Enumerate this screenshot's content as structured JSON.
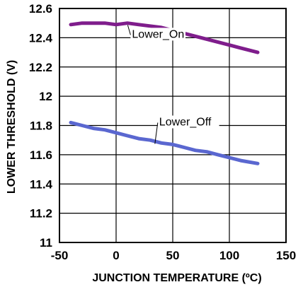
{
  "chart_data": {
    "type": "line",
    "xlabel": "JUNCTION TEMPERATURE (ºC)",
    "ylabel": "LOWER THRESHOLD (V)",
    "xlim": [
      -50,
      150
    ],
    "ylim": [
      11,
      12.6
    ],
    "x_ticks": [
      -50,
      0,
      50,
      100,
      150
    ],
    "x_tick_labels": [
      "-50",
      "0",
      "50",
      "100",
      "150"
    ],
    "y_ticks": [
      11,
      11.2,
      11.4,
      11.6,
      11.8,
      12,
      12.2,
      12.4,
      12.6
    ],
    "y_tick_labels": [
      "11",
      "11.2",
      "11.4",
      "11.6",
      "11.8",
      "12",
      "12.2",
      "12.4",
      "12.6"
    ],
    "grid": true,
    "series": [
      {
        "name": "Lower_On",
        "color": "#7f1d8c",
        "x": [
          -40,
          -30,
          -20,
          -10,
          0,
          10,
          20,
          30,
          40,
          50,
          60,
          70,
          80,
          90,
          100,
          110,
          125
        ],
        "y": [
          12.49,
          12.5,
          12.5,
          12.5,
          12.49,
          12.5,
          12.49,
          12.48,
          12.47,
          12.45,
          12.43,
          12.41,
          12.39,
          12.37,
          12.35,
          12.33,
          12.3
        ]
      },
      {
        "name": "Lower_Off",
        "color": "#5a67d0",
        "x": [
          -40,
          -30,
          -20,
          -10,
          0,
          10,
          20,
          30,
          40,
          50,
          60,
          70,
          80,
          90,
          100,
          110,
          125
        ],
        "y": [
          11.82,
          11.8,
          11.78,
          11.77,
          11.75,
          11.73,
          11.71,
          11.7,
          11.68,
          11.67,
          11.65,
          11.63,
          11.62,
          11.6,
          11.58,
          11.56,
          11.54
        ]
      }
    ],
    "annotations": [
      {
        "text": "Lower_On",
        "series": 0,
        "x": 14,
        "y": 12.4
      },
      {
        "text": "Lower_Off",
        "series": 1,
        "x": 38,
        "y": 11.8
      }
    ]
  }
}
